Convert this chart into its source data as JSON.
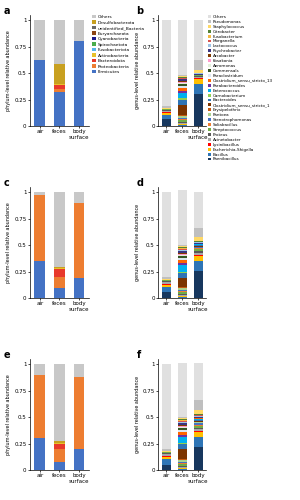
{
  "phylum_labels": [
    "Firmicutes",
    "Proteobacteria",
    "Bacteroidota",
    "Actinobacteria",
    "Fusobacteriota",
    "Spirochaetota",
    "Cyanobacteria",
    "Euryarchaeota",
    "unidentified_Bacteria",
    "Desulfobacterota",
    "Others"
  ],
  "phylum_colors": [
    "#4472c4",
    "#ed7d31",
    "#e8392b",
    "#e8c12a",
    "#56b4e9",
    "#4bae4b",
    "#1a1a8c",
    "#8b4513",
    "#696969",
    "#c8a020",
    "#c8c8c8"
  ],
  "genus_labels": [
    "Paenibacillus",
    "Bacillus",
    "Escherichia-Shigella",
    "Lysinibacillus",
    "Acinetobacter",
    "Proteus",
    "Streptococcus",
    "Soliabacillus",
    "Stenotrophomonas",
    "Pantoea",
    "Erysipelothrix",
    "Clostridium_sensu_stricto_1",
    "Bacteroides",
    "Carnobacterium",
    "Enterococcus",
    "Parabacteroides",
    "Clostridium_sensu_stricto_13",
    "Paraclostridum",
    "Commensals",
    "Aeromonas",
    "Kosakonia",
    "Arcobacter",
    "Psychrobacter",
    "Lactococcus",
    "Morganella",
    "Fusobacterium",
    "Citrobacter",
    "Staphylococcus",
    "Pseudomonas",
    "Others"
  ],
  "genus_colors": [
    "#17375e",
    "#2e75b6",
    "#ffc000",
    "#ff0000",
    "#a6a6a6",
    "#595959",
    "#70ad47",
    "#ed7d31",
    "#4472c4",
    "#a9d18e",
    "#c55a11",
    "#7b3400",
    "#2e74b5",
    "#92d050",
    "#00b0f0",
    "#7030a0",
    "#ff6600",
    "#dce6f1",
    "#375623",
    "#e2efda",
    "#ff99cc",
    "#833c00",
    "#3a3480",
    "#9dc3e6",
    "#d9534f",
    "#f4b942",
    "#548235",
    "#ffd966",
    "#bfbfbf",
    "#e0e0e0"
  ],
  "panel_a": {
    "air": [
      0.62,
      0.0,
      0.0,
      0.0,
      0.0,
      0.0,
      0.0,
      0.0,
      0.0,
      0.0,
      0.38
    ],
    "feces": [
      0.32,
      0.03,
      0.04,
      0.01,
      0.0,
      0.0,
      0.0,
      0.0,
      0.0,
      0.19,
      0.41
    ],
    "body_surface": [
      0.8,
      0.0,
      0.0,
      0.0,
      0.0,
      0.0,
      0.0,
      0.0,
      0.0,
      0.0,
      0.2
    ]
  },
  "panel_c": {
    "air": [
      0.35,
      0.62,
      0.0,
      0.0,
      0.0,
      0.0,
      0.0,
      0.0,
      0.0,
      0.0,
      0.03
    ],
    "feces": [
      0.09,
      0.11,
      0.07,
      0.01,
      0.0,
      0.0,
      0.0,
      0.0,
      0.0,
      0.01,
      0.71
    ],
    "body_surface": [
      0.19,
      0.71,
      0.0,
      0.0,
      0.0,
      0.0,
      0.0,
      0.0,
      0.0,
      0.0,
      0.1
    ]
  },
  "panel_e": {
    "air": [
      0.3,
      0.6,
      0.0,
      0.0,
      0.0,
      0.0,
      0.0,
      0.0,
      0.0,
      0.0,
      0.1
    ],
    "feces": [
      0.08,
      0.12,
      0.05,
      0.01,
      0.0,
      0.0,
      0.0,
      0.0,
      0.0,
      0.01,
      0.73
    ],
    "body_surface": [
      0.2,
      0.68,
      0.0,
      0.0,
      0.0,
      0.0,
      0.0,
      0.0,
      0.0,
      0.0,
      0.12
    ]
  },
  "panel_b": {
    "air": [
      0.07,
      0.03,
      0.02,
      0.01,
      0.01,
      0.01,
      0.01,
      0.0,
      0.0,
      0.0,
      0.0,
      0.0,
      0.0,
      0.0,
      0.0,
      0.0,
      0.0,
      0.0,
      0.0,
      0.0,
      0.0,
      0.0,
      0.0,
      0.0,
      0.0,
      0.0,
      0.0,
      0.01,
      0.02,
      0.81
    ],
    "feces": [
      0.0,
      0.01,
      0.01,
      0.0,
      0.01,
      0.01,
      0.02,
      0.01,
      0.01,
      0.01,
      0.01,
      0.1,
      0.05,
      0.01,
      0.05,
      0.02,
      0.03,
      0.02,
      0.02,
      0.01,
      0.01,
      0.01,
      0.01,
      0.0,
      0.01,
      0.0,
      0.01,
      0.01,
      0.01,
      0.52
    ],
    "body_surface": [
      0.3,
      0.1,
      0.04,
      0.01,
      0.01,
      0.01,
      0.01,
      0.0,
      0.0,
      0.0,
      0.0,
      0.0,
      0.0,
      0.0,
      0.0,
      0.0,
      0.0,
      0.0,
      0.0,
      0.0,
      0.0,
      0.0,
      0.01,
      0.01,
      0.0,
      0.0,
      0.0,
      0.03,
      0.09,
      0.38
    ]
  },
  "panel_d": {
    "air": [
      0.06,
      0.04,
      0.02,
      0.01,
      0.02,
      0.01,
      0.01,
      0.0,
      0.0,
      0.0,
      0.0,
      0.0,
      0.0,
      0.0,
      0.0,
      0.0,
      0.0,
      0.0,
      0.0,
      0.0,
      0.0,
      0.0,
      0.0,
      0.0,
      0.0,
      0.0,
      0.0,
      0.01,
      0.02,
      0.8
    ],
    "feces": [
      0.0,
      0.01,
      0.01,
      0.0,
      0.01,
      0.01,
      0.02,
      0.01,
      0.01,
      0.01,
      0.01,
      0.09,
      0.05,
      0.01,
      0.06,
      0.02,
      0.03,
      0.02,
      0.02,
      0.01,
      0.01,
      0.01,
      0.01,
      0.01,
      0.01,
      0.01,
      0.01,
      0.01,
      0.01,
      0.52
    ],
    "body_surface": [
      0.26,
      0.09,
      0.05,
      0.01,
      0.02,
      0.01,
      0.02,
      0.01,
      0.01,
      0.0,
      0.0,
      0.01,
      0.01,
      0.0,
      0.01,
      0.0,
      0.0,
      0.0,
      0.0,
      0.0,
      0.0,
      0.0,
      0.01,
      0.01,
      0.0,
      0.0,
      0.01,
      0.04,
      0.08,
      0.34
    ]
  },
  "panel_f": {
    "air": [
      0.05,
      0.05,
      0.02,
      0.01,
      0.02,
      0.01,
      0.01,
      0.0,
      0.0,
      0.0,
      0.0,
      0.0,
      0.0,
      0.0,
      0.0,
      0.0,
      0.0,
      0.0,
      0.0,
      0.0,
      0.0,
      0.0,
      0.0,
      0.0,
      0.0,
      0.0,
      0.0,
      0.01,
      0.02,
      0.8
    ],
    "feces": [
      0.0,
      0.01,
      0.01,
      0.0,
      0.01,
      0.01,
      0.02,
      0.01,
      0.01,
      0.01,
      0.01,
      0.1,
      0.05,
      0.01,
      0.05,
      0.02,
      0.03,
      0.02,
      0.02,
      0.01,
      0.01,
      0.01,
      0.01,
      0.01,
      0.01,
      0.01,
      0.01,
      0.01,
      0.01,
      0.51
    ],
    "body_surface": [
      0.22,
      0.09,
      0.05,
      0.01,
      0.02,
      0.01,
      0.02,
      0.01,
      0.01,
      0.01,
      0.0,
      0.01,
      0.01,
      0.0,
      0.01,
      0.0,
      0.01,
      0.0,
      0.0,
      0.0,
      0.0,
      0.0,
      0.01,
      0.01,
      0.01,
      0.0,
      0.01,
      0.04,
      0.09,
      0.35
    ]
  },
  "xtick_labels": [
    "air",
    "feces",
    "body\nsurface"
  ],
  "phylum_ylabel": "phylum-level relative abundance",
  "genus_ylabel": "genus-level relative abundance"
}
